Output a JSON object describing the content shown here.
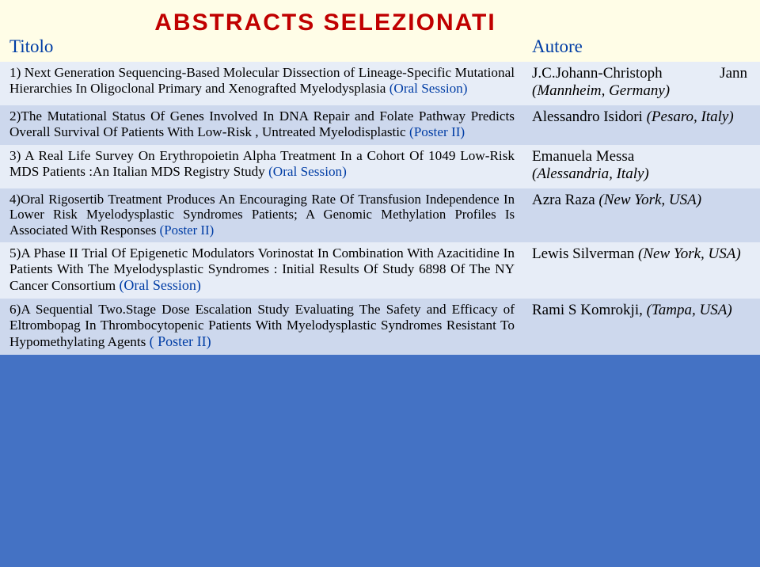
{
  "colors": {
    "page_bg": "#4472c4",
    "header_bg": "#fffde7",
    "row_a_bg": "#e7edf7",
    "row_b_bg": "#cdd8ed",
    "title_red": "#c00000",
    "blue": "#003da5",
    "text": "#000000"
  },
  "header": {
    "main_title": "ABSTRACTS SELEZIONATI",
    "titolo": "Titolo",
    "autore": "Autore"
  },
  "rows": [
    {
      "title_pre": "1) Next Generation Sequencing-Based Molecular Dissection of Lineage-Specific Mutational Hierarchies In Oligoclonal Primary and Xenografted Myelodysplasia ",
      "marker": "(Oral Session)",
      "author_name": "J.C.Johann-Christoph",
      "author_right": "Jann",
      "author_loc": "(Mannheim, Germany)"
    },
    {
      "title_pre": "2)The Mutational Status Of Genes Involved In DNA Repair and Folate Pathway Predicts Overall Survival Of Patients With Low-Risk , Untreated Myelodisplastic  ",
      "marker": "(Poster II)",
      "author_name": "Alessandro Isidori ",
      "author_loc": "(Pesaro, Italy)"
    },
    {
      "title_pre": "3) A  Real Life Survey On Erythropoietin Alpha Treatment In a Cohort Of 1049 Low-Risk MDS Patients :An Italian MDS Registry Study ",
      "marker": "(Oral Session)",
      "author_name": "Emanuela Messa",
      "author_loc": "(Alessandria, Italy)"
    },
    {
      "title_pre": "4)Oral Rigosertib Treatment Produces An Encouraging Rate Of Transfusion Independence In Lower Risk Myelodysplastic Syndromes Patients; A Genomic Methylation Profiles Is Associated With Responses ",
      "marker": "(Poster II)",
      "author_name": "Azra Raza ",
      "author_loc": "(New York, USA)"
    },
    {
      "title_pre": "5)A Phase II Trial Of Epigenetic Modulators Vorinostat In Combination With Azacitidine In Patients With The Myelodysplastic Syndromes : Initial Results Of Study 6898 Of The NY Cancer Consortium ",
      "marker": "(Oral Session)",
      "author_name": "Lewis Silverman ",
      "author_loc": "(New York, USA)"
    },
    {
      "title_pre": "6)A Sequential Two.Stage Dose Escalation Study Evaluating The Safety and Efficacy of Eltrombopag In Thrombocytopenic Patients With Myelodysplastic Syndromes Resistant To Hypomethylating Agents ",
      "marker": "( Poster II)",
      "author_name": "Rami S Komrokji, ",
      "author_loc": "(Tampa, USA)"
    }
  ]
}
